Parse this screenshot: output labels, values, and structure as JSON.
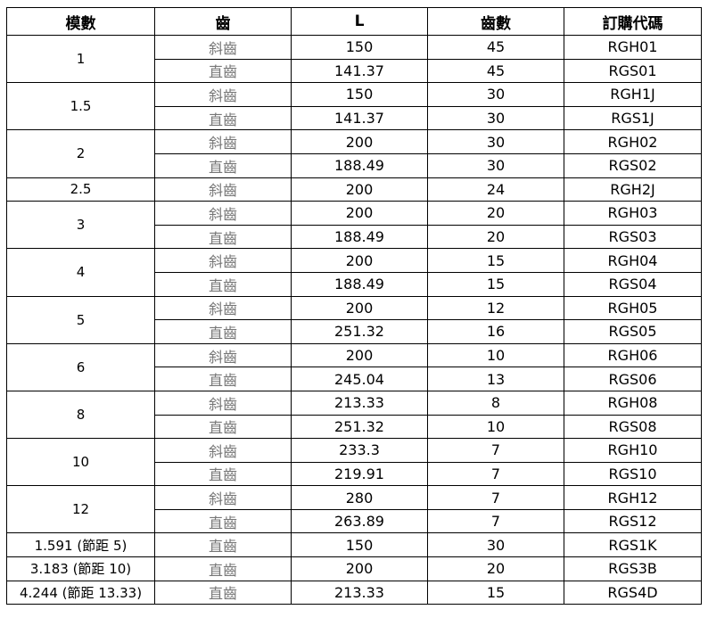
{
  "table": {
    "header": [
      "模數",
      "齒",
      "L",
      "齒數",
      "訂購代碼"
    ],
    "groups": [
      {
        "module": 1,
        "rows": [
          [
            "斜齒",
            150,
            45,
            "RGH01"
          ],
          [
            "直齒",
            141.37,
            45,
            "RGS01"
          ]
        ]
      },
      {
        "module": 1.5,
        "rows": [
          [
            "斜齒",
            150,
            30,
            "RGH1J"
          ],
          [
            "直齒",
            141.37,
            30,
            "RGS1J"
          ]
        ]
      },
      {
        "module": 2,
        "rows": [
          [
            "斜齒",
            200,
            30,
            "RGH02"
          ],
          [
            "直齒",
            188.49,
            30,
            "RGS02"
          ]
        ]
      },
      {
        "module": 2.5,
        "rows": [
          [
            "斜齒",
            200,
            24,
            "RGH2J"
          ]
        ]
      },
      {
        "module": 3,
        "rows": [
          [
            "斜齒",
            200,
            20,
            "RGH03"
          ],
          [
            "直齒",
            188.49,
            20,
            "RGS03"
          ]
        ]
      },
      {
        "module": 4,
        "rows": [
          [
            "斜齒",
            200,
            15,
            "RGH04"
          ],
          [
            "直齒",
            188.49,
            15,
            "RGS04"
          ]
        ]
      },
      {
        "module": 5,
        "rows": [
          [
            "斜齒",
            200,
            12,
            "RGH05"
          ],
          [
            "直齒",
            251.32,
            16,
            "RGS05"
          ]
        ]
      },
      {
        "module": 6,
        "rows": [
          [
            "斜齒",
            200,
            10,
            "RGH06"
          ],
          [
            "直齒",
            245.04,
            13,
            "RGS06"
          ]
        ]
      },
      {
        "module": 8,
        "rows": [
          [
            "斜齒",
            213.33,
            8,
            "RGH08"
          ],
          [
            "直齒",
            251.32,
            10,
            "RGS08"
          ]
        ]
      },
      {
        "module": 10,
        "rows": [
          [
            "斜齒",
            233.3,
            7,
            "RGH10"
          ],
          [
            "直齒",
            219.91,
            7,
            "RGS10"
          ]
        ]
      },
      {
        "module": 12,
        "rows": [
          [
            "斜齒",
            280,
            7,
            "RGH12"
          ],
          [
            "直齒",
            263.89,
            7,
            "RGS12"
          ]
        ]
      },
      {
        "module": "1.591 (節距 5)",
        "rows": [
          [
            "直齒",
            150,
            30,
            "RGS1K"
          ]
        ]
      },
      {
        "module": "3.183 (節距 10)",
        "rows": [
          [
            "直齒",
            200,
            20,
            "RGS3B"
          ]
        ]
      },
      {
        "module": "4.244 (節距 13.33)",
        "rows": [
          [
            "直齒",
            213.33,
            15,
            "RGS4D"
          ]
        ]
      }
    ]
  }
}
